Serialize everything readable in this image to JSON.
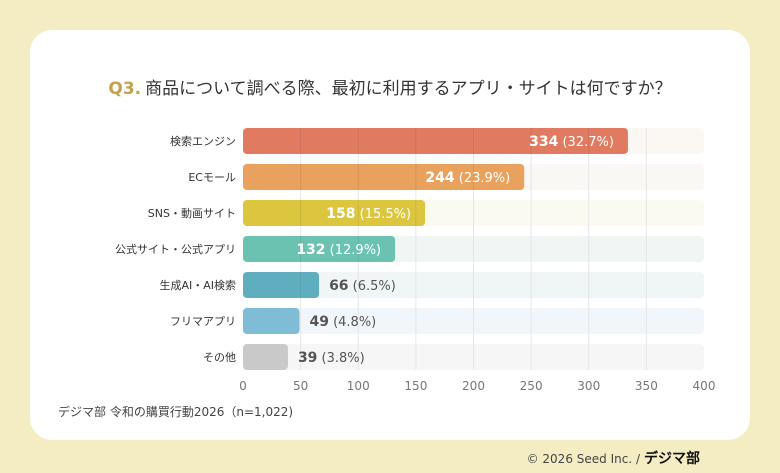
{
  "title": {
    "prefix": "Q3.",
    "text": "商品について調べる際、最初に利用するアプリ・サイトは何ですか？"
  },
  "source": "デジマ部 令和の購買行動2026（n=1,022)",
  "copyright": "© 2026 Seed Inc. /",
  "logo": "デジマ部",
  "chart_data": {
    "type": "bar",
    "orientation": "horizontal",
    "categories": [
      "検索エンジン",
      "ECモール",
      "SNS・動画サイト",
      "公式サイト・公式アプリ",
      "生成AI・AI検索",
      "フリマアプリ",
      "その他"
    ],
    "values": [
      334,
      244,
      158,
      132,
      66,
      49,
      39
    ],
    "percent_labels": [
      "(32.7%)",
      "(23.9%)",
      "(15.5%)",
      "(12.9%)",
      "(6.5%)",
      "(4.8%)",
      "(3.8%)"
    ],
    "colors": [
      "#e07b62",
      "#e9a15e",
      "#dcc63f",
      "#6cc2b0",
      "#5faec0",
      "#7fbdd6",
      "#c9c9c9"
    ],
    "track_colors": [
      "#fbf8f4",
      "#faf8f4",
      "#fbfaf0",
      "#f1f6f5",
      "#f0f6f6",
      "#f0f6fa",
      "#f6f6f6"
    ],
    "xlim": [
      0,
      400
    ],
    "xticks": [
      "0",
      "50",
      "100",
      "150",
      "200",
      "250",
      "300",
      "350",
      "400"
    ],
    "grid": true,
    "xlabel": "",
    "ylabel": ""
  }
}
